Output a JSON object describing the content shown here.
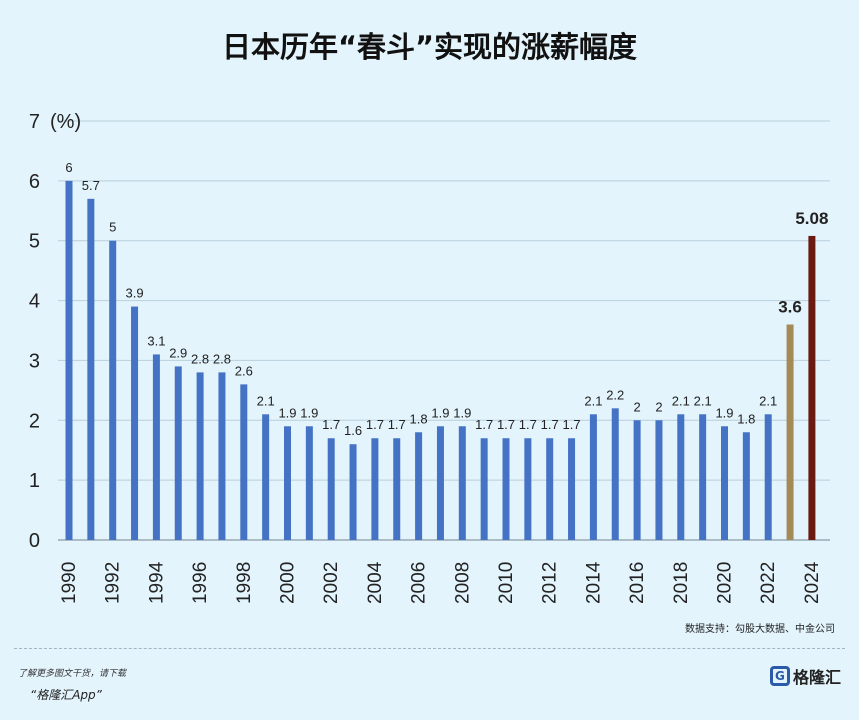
{
  "title": "日本历年“春斗”实现的涨薪幅度",
  "source": "数据支持：勾股大数据、中金公司",
  "footer": {
    "tip": "了解更多图文干货，请下载",
    "app": "“格隆汇App”",
    "logo": "格隆汇"
  },
  "chart_data": {
    "type": "bar",
    "unit_label": "(%)",
    "ylim": [
      0,
      7
    ],
    "y_ticks": [
      0,
      1,
      2,
      3,
      4,
      5,
      6,
      7
    ],
    "x_tick_labels": [
      "1990",
      "1992",
      "1994",
      "1996",
      "1998",
      "2000",
      "2002",
      "2004",
      "2006",
      "2008",
      "2010",
      "2012",
      "2014",
      "2016",
      "2018",
      "2020",
      "2022",
      "2024"
    ],
    "categories": [
      "1990",
      "1991",
      "1992",
      "1993",
      "1994",
      "1995",
      "1996",
      "1997",
      "1998",
      "1999",
      "2000",
      "2001",
      "2002",
      "2003",
      "2004",
      "2005",
      "2006",
      "2007",
      "2008",
      "2009",
      "2010",
      "2011",
      "2012",
      "2013",
      "2014",
      "2015",
      "2016",
      "2017",
      "2018",
      "2019",
      "2020",
      "2021",
      "2022",
      "2023",
      "2024"
    ],
    "values": [
      6,
      5.7,
      5,
      3.9,
      3.1,
      2.9,
      2.8,
      2.8,
      2.6,
      2.1,
      1.9,
      1.9,
      1.7,
      1.6,
      1.7,
      1.7,
      1.8,
      1.9,
      1.9,
      1.7,
      1.7,
      1.7,
      1.7,
      1.7,
      2.1,
      2.2,
      2,
      2,
      2.1,
      2.1,
      1.9,
      1.8,
      2.1,
      3.6,
      5.08
    ],
    "labels": [
      "6",
      "5.7",
      "5",
      "3.9",
      "3.1",
      "2.9",
      "2.8",
      "2.8",
      "2.6",
      "2.1",
      "1.9",
      "1.9",
      "1.7",
      "1.6",
      "1.7",
      "1.7",
      "1.8",
      "1.9",
      "1.9",
      "1.7",
      "1.7",
      "1.7",
      "1.7",
      "1.7",
      "2.1",
      "2.2",
      "2",
      "2",
      "2.1",
      "2.1",
      "1.9",
      "1.8",
      "2.1",
      "3.6",
      "5.08"
    ],
    "colors": {
      "default": "#4472c4",
      "2023": "#a48a57",
      "2024": "#6b1a12",
      "grid": "#b9cfdc",
      "axis": "#8a9aa5"
    },
    "grid": true
  }
}
